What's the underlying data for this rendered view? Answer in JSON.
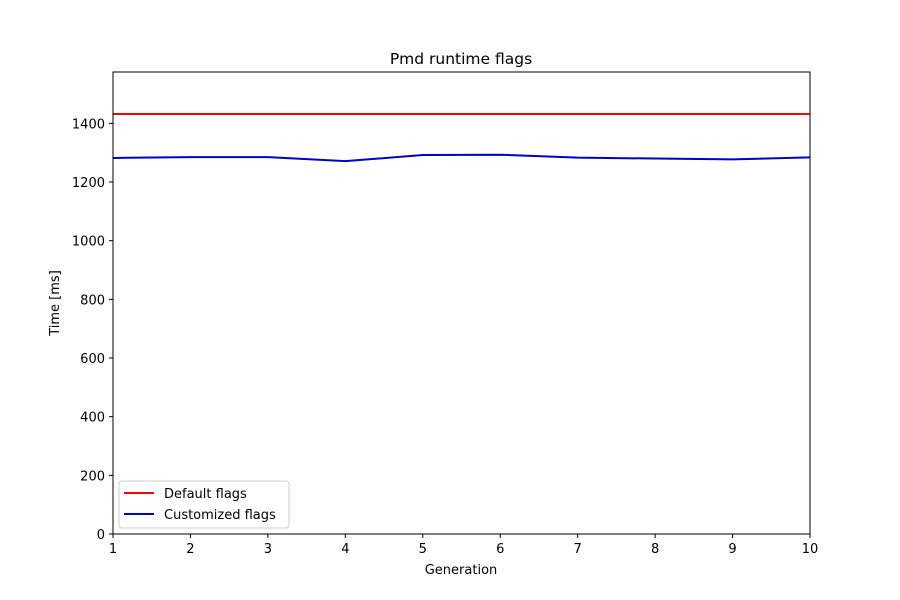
{
  "chart_data": {
    "type": "line",
    "title": "Pmd runtime flags",
    "xlabel": "Generation",
    "ylabel": "Time [ms]",
    "xlim": [
      1,
      10
    ],
    "ylim": [
      0,
      1575
    ],
    "xticks": [
      "1",
      "2",
      "3",
      "4",
      "5",
      "6",
      "7",
      "8",
      "9",
      "10"
    ],
    "yticks": [
      "0",
      "200",
      "400",
      "600",
      "800",
      "1000",
      "1200",
      "1400"
    ],
    "grid": false,
    "legend_position": "lower-left",
    "x": [
      1,
      2,
      3,
      4,
      5,
      6,
      7,
      8,
      9,
      10
    ],
    "series": [
      {
        "name": "Default flags",
        "color": "#ff0000",
        "values": [
          1432,
          1432,
          1432,
          1432,
          1432,
          1432,
          1432,
          1432,
          1432,
          1432
        ]
      },
      {
        "name": "Customized flags",
        "color": "#0000cc",
        "values": [
          1282,
          1285,
          1285,
          1271,
          1292,
          1293,
          1283,
          1280,
          1277,
          1284
        ]
      }
    ]
  }
}
